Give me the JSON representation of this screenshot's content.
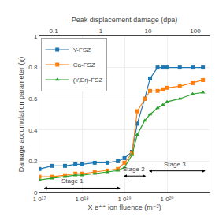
{
  "chart_data": {
    "type": "line",
    "x_label": "X e⁺⁺ ion fluence (m⁻²)",
    "y_label": "Damage accumulation parameter (χ)",
    "x2_label": "Peak displacement damage (dpa)",
    "log": "x",
    "xlim": [
      1e+17,
      1e+21
    ],
    "xticks": [
      {
        "value": 1e+17,
        "label": "1 0¹⁷"
      },
      {
        "value": 1e+18,
        "label": "1 0¹⁸"
      },
      {
        "value": 1e+19,
        "label": "1 0¹⁹"
      },
      {
        "value": 1e+20,
        "label": "1 0²⁰"
      }
    ],
    "ylim": [
      0,
      1.0
    ],
    "yticks": [
      0,
      0.2,
      0.4,
      0.6,
      0.8,
      1
    ],
    "x2lim": [
      0.05,
      200
    ],
    "x2ticks": [
      0.1,
      1,
      10,
      100
    ],
    "x": [
      1e+17,
      2e+17,
      4e+17,
      7e+17,
      1e+18,
      2e+18,
      4e+18,
      7e+18,
      1e+19,
      1.5e+19,
      2e+19,
      3e+19,
      4e+19,
      6e+19,
      8e+19,
      1e+20,
      2e+20,
      4e+20,
      7e+20
    ],
    "series": [
      {
        "name": "Y-FSZ",
        "marker": "square",
        "line_style": "solid",
        "values": [
          0.15,
          0.17,
          0.17,
          0.18,
          0.18,
          0.19,
          0.19,
          0.2,
          0.22,
          0.26,
          0.44,
          0.6,
          0.73,
          0.8,
          0.8,
          0.8,
          0.8,
          0.8,
          0.8
        ]
      },
      {
        "name": "Ca-FSZ",
        "marker": "square",
        "line_style": "solid",
        "values": [
          0.1,
          0.1,
          0.11,
          0.12,
          0.12,
          0.13,
          0.14,
          0.15,
          0.19,
          0.25,
          0.52,
          0.6,
          0.65,
          0.65,
          0.66,
          0.67,
          0.68,
          0.7,
          0.72
        ]
      },
      {
        "name": "(Y,Er)-FSZ",
        "marker": "triangle",
        "line_style": "solid",
        "values": [
          0.08,
          0.09,
          0.1,
          0.11,
          0.11,
          0.12,
          0.13,
          0.14,
          0.16,
          0.24,
          0.37,
          0.46,
          0.5,
          0.54,
          0.56,
          0.58,
          0.6,
          0.63,
          0.64
        ]
      }
    ],
    "annotations": [
      {
        "text": "Stage 1",
        "x": 6e+17,
        "y": 0.038,
        "x_start": 1.2e+17,
        "x_end": 8e+18,
        "y_arrow": 0.028
      },
      {
        "text": "Stage 2",
        "x": 1.7e+19,
        "y": 0.115,
        "x_start": 9e+18,
        "x_end": 3.2e+19,
        "y_arrow": 0.105
      },
      {
        "text": "Stage 3",
        "x": 1.5e+20,
        "y": 0.148,
        "x_start": 3.5e+19,
        "x_end": 8e+20,
        "y_arrow": 0.138
      }
    ],
    "legend": "upper left",
    "grid": true
  }
}
